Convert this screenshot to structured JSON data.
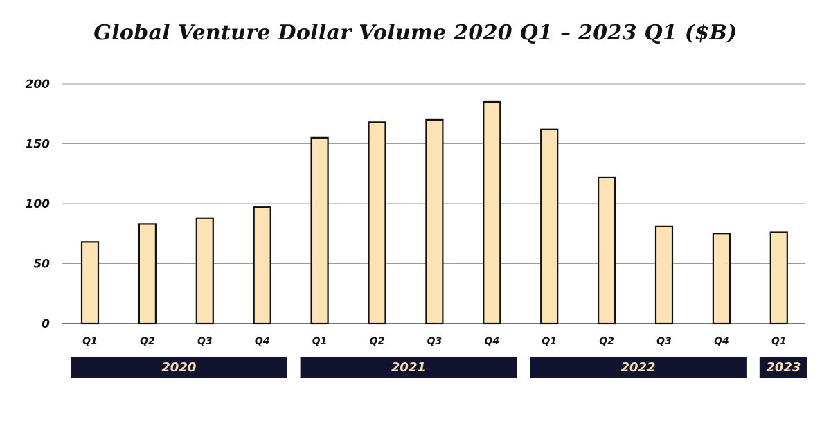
{
  "chart_data": {
    "type": "bar",
    "title": "Global Venture Dollar Volume 2020 Q1 – 2023 Q1 ($B)",
    "xlabel": "",
    "ylabel": "",
    "categories": [
      "Q1",
      "Q2",
      "Q3",
      "Q4",
      "Q1",
      "Q2",
      "Q3",
      "Q4",
      "Q1",
      "Q2",
      "Q3",
      "Q4",
      "Q1"
    ],
    "values": [
      68,
      83,
      88,
      97,
      155,
      168,
      170,
      185,
      162,
      122,
      81,
      75,
      76
    ],
    "ylim": [
      0,
      200
    ],
    "yticks": [
      "0",
      "50",
      "100",
      "150",
      "200"
    ],
    "grid": true,
    "year_groups": [
      {
        "label": "2020",
        "count": 4
      },
      {
        "label": "2021",
        "count": 4
      },
      {
        "label": "2022",
        "count": 4
      },
      {
        "label": "2023",
        "count": 1
      }
    ],
    "colors": {
      "bar_fill": "#fbe3b4",
      "bar_stroke": "#111111",
      "grid": "#9a9ab2",
      "year_band": "#12132e",
      "year_text": "#f6dfb0"
    }
  }
}
